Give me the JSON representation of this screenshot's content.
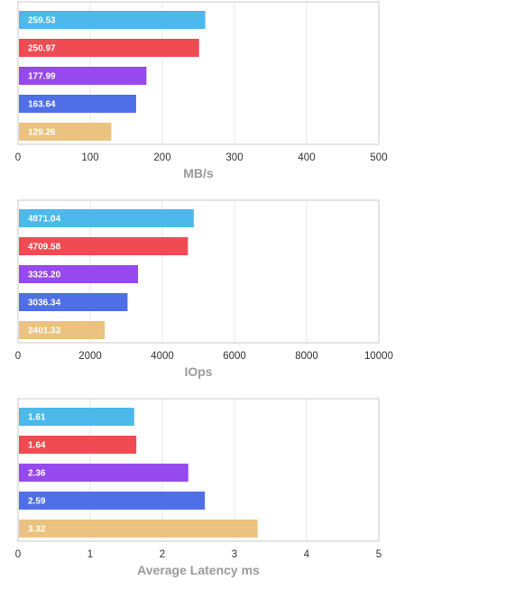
{
  "colors": [
    "#4db8ea",
    "#ee4c52",
    "#9649ec",
    "#4f6fe8",
    "#ebc27f"
  ],
  "chart_data": [
    {
      "type": "bar",
      "orientation": "horizontal",
      "xlabel": "MB/s",
      "xlim": [
        0,
        500
      ],
      "ticks": [
        "0",
        "100",
        "200",
        "300",
        "400",
        "500"
      ],
      "tick_values": [
        0,
        100,
        200,
        300,
        400,
        500
      ],
      "values": [
        259.53,
        250.97,
        177.99,
        163.64,
        129.26
      ],
      "labels": [
        "259.53",
        "250.97",
        "177.99",
        "163.64",
        "129.26"
      ],
      "grid": true
    },
    {
      "type": "bar",
      "orientation": "horizontal",
      "xlabel": "IOps",
      "xlim": [
        0,
        10000
      ],
      "ticks": [
        "0",
        "2000",
        "4000",
        "6000",
        "8000",
        "10000"
      ],
      "tick_values": [
        0,
        2000,
        4000,
        6000,
        8000,
        10000
      ],
      "values": [
        4871.04,
        4709.58,
        3325.2,
        3036.34,
        2401.33
      ],
      "labels": [
        "4871.04",
        "4709.58",
        "3325.20",
        "3036.34",
        "2401.33"
      ],
      "grid": true
    },
    {
      "type": "bar",
      "orientation": "horizontal",
      "xlabel": "Average Latency ms",
      "xlim": [
        0,
        5
      ],
      "ticks": [
        "0",
        "1",
        "2",
        "3",
        "4",
        "5"
      ],
      "tick_values": [
        0,
        1,
        2,
        3,
        4,
        5
      ],
      "values": [
        1.61,
        1.64,
        2.36,
        2.59,
        3.32
      ],
      "labels": [
        "1.61",
        "1.64",
        "2.36",
        "2.59",
        "3.32"
      ],
      "grid": true
    }
  ]
}
